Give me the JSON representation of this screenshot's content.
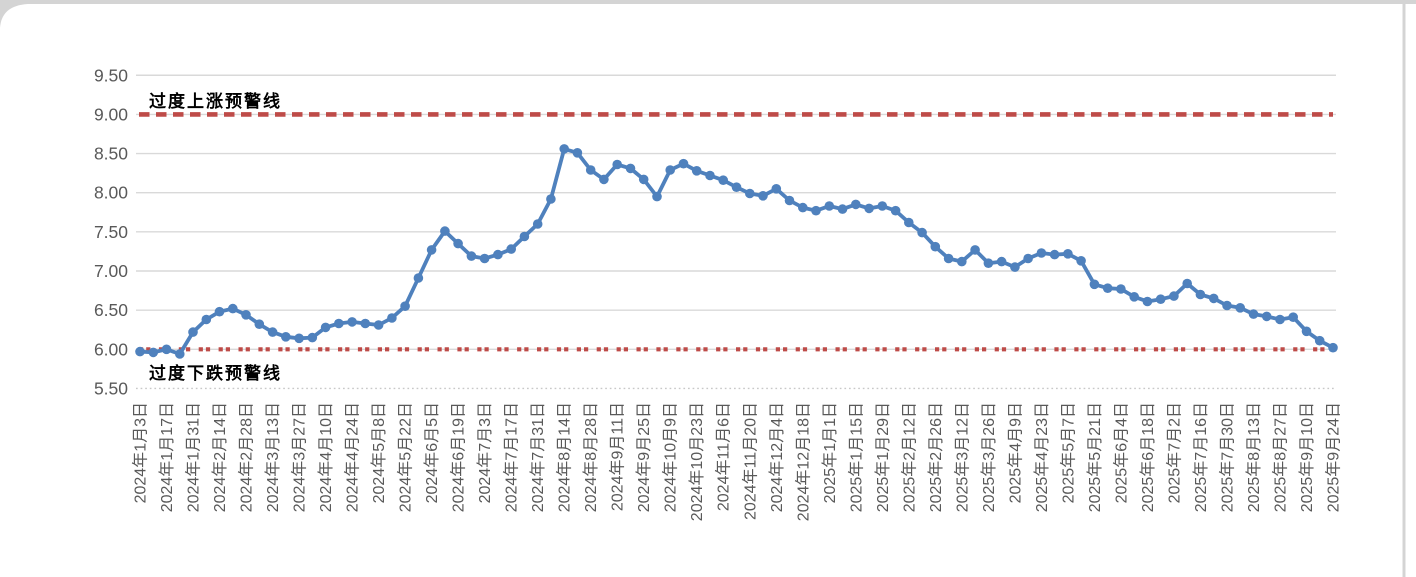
{
  "chart_data": {
    "type": "line",
    "title": "",
    "xlabel": "",
    "ylabel": "",
    "ylim": [
      5.5,
      9.5
    ],
    "grid": true,
    "legend": "none",
    "line_color": "#4F81BD",
    "marker": "circle",
    "axis_text_color": "#595959",
    "grid_color": "#D9D9D9",
    "frame_color": "#D4D4D4",
    "y_tick_labels": [
      "9.50",
      "9.00",
      "8.50",
      "8.00",
      "7.50",
      "7.00",
      "6.50",
      "6.00",
      "5.50"
    ],
    "x_points_per_tick": 2,
    "x_tick_labels": [
      "2024年1月3日",
      "2024年1月17日",
      "2024年1月31日",
      "2024年2月14日",
      "2024年2月28日",
      "2024年3月13日",
      "2024年3月27日",
      "2024年4月10日",
      "2024年4月24日",
      "2024年5月8日",
      "2024年5月22日",
      "2024年6月5日",
      "2024年6月19日",
      "2024年7月3日",
      "2024年7月17日",
      "2024年7月31日",
      "2024年8月14日",
      "2024年8月28日",
      "2024年9月11日",
      "2024年9月25日",
      "2024年10月9日",
      "2024年10月23日",
      "2024年11月6日",
      "2024年11月20日",
      "2024年12月4日",
      "2024年12月18日",
      "2025年1月1日",
      "2025年1月15日",
      "2025年1月29日",
      "2025年2月12日",
      "2025年2月26日",
      "2025年3月12日",
      "2025年3月26日",
      "2025年4月9日",
      "2025年4月23日",
      "2025年5月7日",
      "2025年5月21日",
      "2025年6月4日",
      "2025年6月18日",
      "2025年7月2日",
      "2025年7月16日",
      "2025年7月30日",
      "2025年8月13日",
      "2025年8月27日",
      "2025年9月10日",
      "2025年9月24日"
    ],
    "values": [
      5.97,
      5.96,
      6.0,
      5.94,
      6.22,
      6.38,
      6.48,
      6.52,
      6.44,
      6.32,
      6.22,
      6.16,
      6.14,
      6.15,
      6.28,
      6.33,
      6.35,
      6.33,
      6.31,
      6.4,
      6.55,
      6.91,
      7.27,
      7.51,
      7.35,
      7.19,
      7.16,
      7.21,
      7.28,
      7.44,
      7.6,
      7.92,
      8.56,
      8.51,
      8.29,
      8.17,
      8.36,
      8.31,
      8.17,
      7.95,
      8.29,
      8.37,
      8.28,
      8.22,
      8.16,
      8.07,
      7.99,
      7.96,
      8.05,
      7.9,
      7.81,
      7.77,
      7.83,
      7.79,
      7.85,
      7.8,
      7.83,
      7.77,
      7.62,
      7.49,
      7.31,
      7.16,
      7.12,
      7.27,
      7.1,
      7.12,
      7.05,
      7.16,
      7.23,
      7.21,
      7.22,
      7.13,
      6.83,
      6.78,
      6.77,
      6.67,
      6.61,
      6.64,
      6.68,
      6.84,
      6.7,
      6.65,
      6.56,
      6.53,
      6.45,
      6.42,
      6.38,
      6.41,
      6.23,
      6.11,
      6.02
    ],
    "annotations": [
      {
        "label": "过度上涨预警线",
        "value": 9.0,
        "color": "#BE4B48",
        "dash": "long"
      },
      {
        "label": "过度下跌预警线",
        "value": 6.0,
        "color": "#BE4B48",
        "dash": "dot-dot"
      }
    ]
  }
}
